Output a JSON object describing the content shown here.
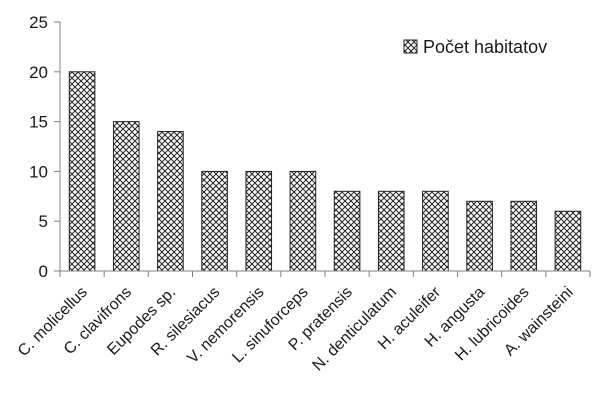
{
  "chart_data": {
    "type": "bar",
    "categories": [
      "C. molicellus",
      "C. clavifrons",
      "Eupodes sp.",
      "R. silesiacus",
      "V. nemorensis",
      "L. sinuforceps",
      "P. pratensis",
      "N. denticulatum",
      "H. aculeifer",
      "H. angusta",
      "H. lubricoides",
      "A. wainsteini"
    ],
    "series": [
      {
        "name": "Počet habitatov",
        "values": [
          20,
          15,
          14,
          10,
          10,
          10,
          8,
          8,
          8,
          7,
          7,
          6
        ]
      }
    ],
    "ylim": [
      0,
      25
    ],
    "yticks": [
      "0",
      "5",
      "10",
      "15",
      "20",
      "25"
    ],
    "title": "",
    "xlabel": "",
    "ylabel": "",
    "grid": false,
    "legend_position": "top-right",
    "bar_pattern": "crosshatch",
    "colors": {
      "bar_fill": "#ffffff",
      "hatch": "#222222",
      "axis": "#808080"
    }
  }
}
